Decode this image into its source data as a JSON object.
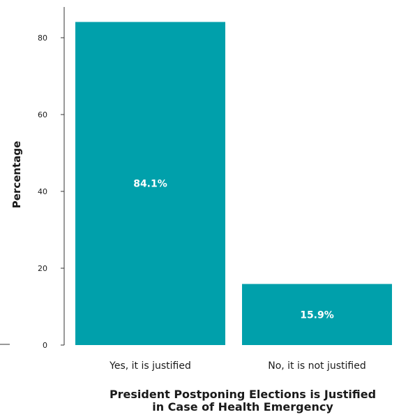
{
  "chart_data": {
    "type": "bar",
    "categories": [
      "Yes, it is justified",
      "No, it is not justified"
    ],
    "values": [
      84.1,
      15.9
    ],
    "data_labels": [
      "84.1%",
      "15.9%"
    ],
    "title": "",
    "xlabel_lines": [
      "President Postponing Elections is Justified",
      "in Case of Health Emergency"
    ],
    "ylabel": "Percentage",
    "ylim": [
      0,
      88
    ],
    "yticks": [
      0,
      20,
      40,
      60,
      80
    ],
    "grid": false,
    "legend": "none",
    "bar_color": "#00a0ab"
  }
}
